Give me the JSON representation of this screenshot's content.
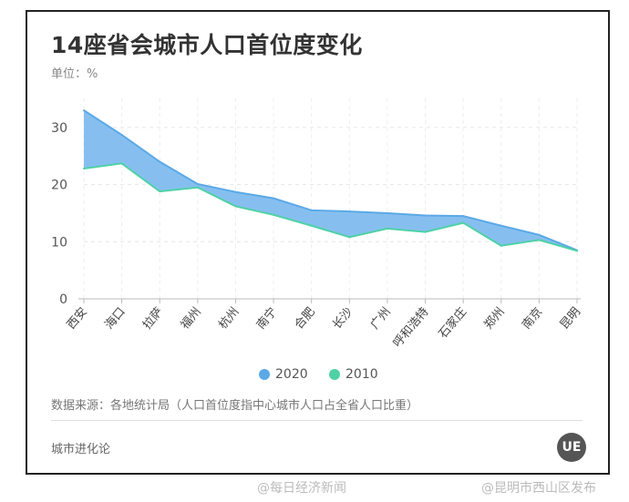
{
  "title": "14座省会城市人口首位度变化",
  "unit": "单位：%",
  "source": "数据来源：各地统计局（人口首位度指中心城市人口占全省人口比重）",
  "brand": "城市进化论",
  "logo_text": "UE",
  "weibo": [
    "@每日经济新闻",
    "@昆明市西山区发布"
  ],
  "chart_data": {
    "type": "area",
    "title": "14座省会城市人口首位度变化",
    "ylabel": "单位：%",
    "ylim": [
      0,
      35
    ],
    "yticks": [
      "0",
      "10",
      "20",
      "30"
    ],
    "grid": true,
    "legend_position": "bottom",
    "categories": [
      "西安",
      "海口",
      "拉萨",
      "福州",
      "杭州",
      "南宁",
      "合肥",
      "长沙",
      "广州",
      "呼和浩特",
      "石家庄",
      "郑州",
      "南京",
      "昆明"
    ],
    "series": [
      {
        "name": "2020",
        "color": "#5aa9e6",
        "values": [
          33.0,
          28.7,
          24.0,
          20.1,
          18.7,
          17.6,
          15.5,
          15.3,
          15.0,
          14.6,
          14.5,
          12.8,
          11.2,
          8.5
        ]
      },
      {
        "name": "2010",
        "color": "#4fd1a5",
        "values": [
          22.8,
          23.7,
          18.8,
          19.5,
          16.2,
          14.7,
          12.8,
          10.8,
          12.3,
          11.7,
          13.3,
          9.3,
          10.3,
          8.4
        ]
      }
    ]
  }
}
